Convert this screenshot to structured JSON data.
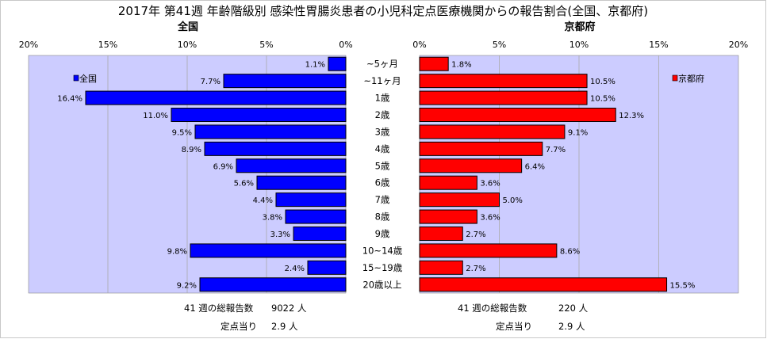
{
  "chart_data": {
    "type": "bar",
    "title": "2017年 第41週 年齢階級別 感染性胃腸炎患者の小児科定点医療機関からの報告割合(全国、京都府)",
    "categories": [
      "~5ヶ月",
      "~11ヶ月",
      "1歳",
      "2歳",
      "3歳",
      "4歳",
      "5歳",
      "6歳",
      "7歳",
      "8歳",
      "9歳",
      "10~14歳",
      "15~19歳",
      "20歳以上"
    ],
    "xlim": [
      0,
      20
    ],
    "tick_labels": [
      "0%",
      "5%",
      "10%",
      "15%",
      "20%"
    ],
    "colors": {
      "national": "#0000ff",
      "kyoto": "#ff0000",
      "plot_bg": "#ccccff",
      "grid": "#aaaaaa"
    },
    "panels": [
      {
        "name": "全国",
        "legend": "全国",
        "direction": "left",
        "values": [
          1.1,
          7.7,
          16.4,
          11.0,
          9.5,
          8.9,
          6.9,
          5.6,
          4.4,
          3.8,
          3.3,
          9.8,
          2.4,
          9.2
        ],
        "labels": [
          "1.1%",
          "7.7%",
          "16.4%",
          "11.0%",
          "9.5%",
          "8.9%",
          "6.9%",
          "5.6%",
          "4.4%",
          "3.8%",
          "3.3%",
          "9.8%",
          "2.4%",
          "9.2%"
        ],
        "footer": {
          "total_label": "41 週の総報告数",
          "total_value": "9022 人",
          "per_label": "定点当り",
          "per_value": "2.9 人"
        }
      },
      {
        "name": "京都府",
        "legend": "京都府",
        "direction": "right",
        "values": [
          1.8,
          10.5,
          10.5,
          12.3,
          9.1,
          7.7,
          6.4,
          3.6,
          5.0,
          3.6,
          2.7,
          8.6,
          2.7,
          15.5
        ],
        "labels": [
          "1.8%",
          "10.5%",
          "10.5%",
          "12.3%",
          "9.1%",
          "7.7%",
          "6.4%",
          "3.6%",
          "5.0%",
          "3.6%",
          "2.7%",
          "8.6%",
          "2.7%",
          "15.5%"
        ],
        "footer": {
          "total_label": "41 週の総報告数",
          "total_value": "220 人",
          "per_label": "定点当り",
          "per_value": "2.9 人"
        }
      }
    ]
  }
}
